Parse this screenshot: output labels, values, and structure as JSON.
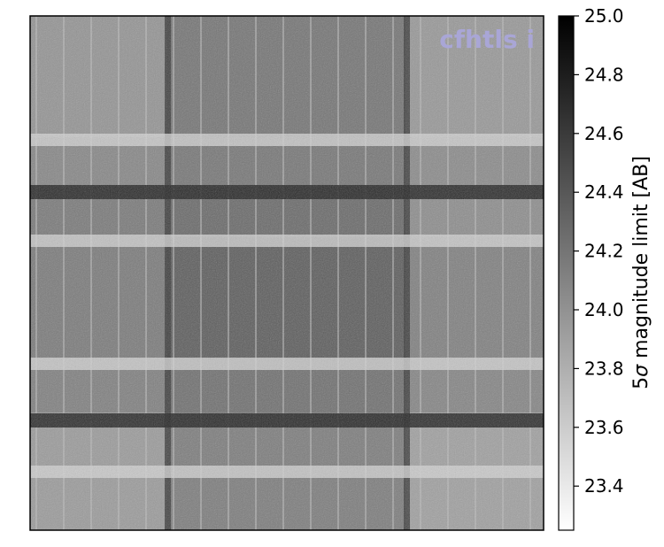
{
  "chart_data": {
    "type": "heatmap",
    "title": "",
    "xlabel": "",
    "ylabel": "",
    "annotation": "cfhtls i",
    "annotation_color": "#a9a6d6",
    "colormap": "gray_r",
    "colorbar": {
      "label_prefix": "5",
      "label_sigma": "σ",
      "label_suffix": " magnitude limit [AB]",
      "vmin": 23.25,
      "vmax": 25.0,
      "ticks": [
        23.4,
        23.6,
        23.8,
        24.0,
        24.2,
        24.4,
        24.6,
        24.8,
        25.0
      ],
      "tick_labels": [
        "23.4",
        "23.6",
        "23.8",
        "24.0",
        "24.2",
        "24.4",
        "24.6",
        "24.8",
        "25.0"
      ]
    },
    "map_description": {
      "columns": [
        24.05,
        24.35,
        23.95
      ],
      "rows": [
        24.0,
        24.1,
        24.2,
        24.3,
        24.15,
        23.9
      ],
      "dark_vertical_stripes": 2,
      "dark_horizontal_stripes": 2,
      "light_horizontal_stripes": 4
    }
  }
}
